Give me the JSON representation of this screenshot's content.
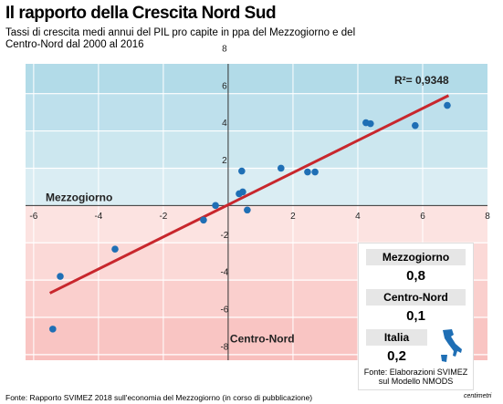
{
  "chart_data": {
    "type": "scatter",
    "title": "Il rapporto della Crescita Nord Sud",
    "subtitle": "Tassi di crescita medi annui del PIL pro capite in ppa del Mezzogiorno e del Centro-Nord dal 2000 al 2016",
    "x_label": "Mezzogiorno",
    "y_label": "Centro-Nord",
    "annotation": "R²= 0,9348",
    "x": [
      6.76,
      5.77,
      4.25,
      4.39,
      2.68,
      2.45,
      1.63,
      0.42,
      0.34,
      0.45,
      0.59,
      -0.39,
      -0.76,
      -3.49,
      -5.18,
      -5.41
    ],
    "series": [
      {
        "color": "#1f6fb5",
        "values": [
          5.37,
          4.29,
          4.44,
          4.39,
          1.8,
          1.8,
          2.0,
          1.85,
          0.63,
          0.73,
          -0.24,
          0,
          -0.78,
          -2.34,
          -3.8,
          -6.63
        ]
      }
    ],
    "fit_line": {
      "color": "#c8272d",
      "x": [
        -5.5,
        6.8
      ],
      "y": [
        -4.7,
        5.9
      ]
    },
    "xlim": [
      -6.25,
      8
    ],
    "ylim": [
      -8.3,
      7.6
    ],
    "xticks": [
      -6,
      -4,
      -2,
      2,
      4,
      6,
      8
    ],
    "yticks": [
      8,
      6,
      4,
      2,
      -2,
      -4,
      -6,
      -8
    ],
    "grid": true,
    "source": "Fonte: Rapporto SVIMEZ 2018 sull'economia del Mezzogiorno (in corso di pubblicazione)",
    "logo": "centimetri"
  },
  "box": {
    "items": [
      {
        "label": "Mezzogiorno",
        "value": "0,8"
      },
      {
        "label": "Centro-Nord",
        "value": "0,1"
      },
      {
        "label": "Italia",
        "value": "0,2"
      }
    ],
    "source": "Fonte: Elaborazioni SVIMEZ sul Modello NMODS"
  }
}
